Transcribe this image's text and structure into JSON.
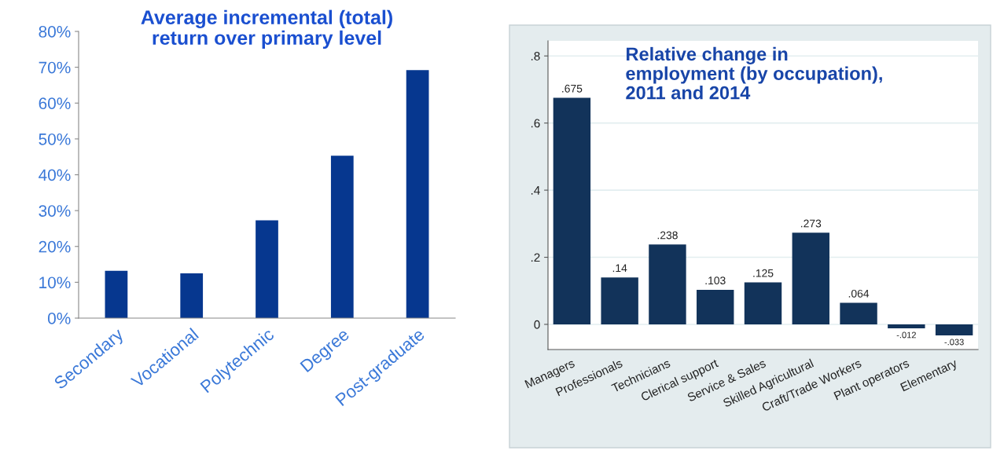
{
  "chart_data": [
    {
      "type": "bar",
      "title": "Average incremental (total)\nreturn over primary level",
      "categories": [
        "Secondary",
        "Vocational",
        "Polytechnic",
        "Degree",
        "Post-graduate"
      ],
      "values": [
        13.2,
        12.5,
        27.3,
        45.3,
        69.2
      ],
      "color": "#06378f",
      "ylim": [
        0,
        80
      ],
      "yticks": [
        {
          "value": 0,
          "label": "0%"
        },
        {
          "value": 10,
          "label": "10%"
        },
        {
          "value": 20,
          "label": "20%"
        },
        {
          "value": 30,
          "label": "30%"
        },
        {
          "value": 40,
          "label": "40%"
        },
        {
          "value": 50,
          "label": "50%"
        },
        {
          "value": 60,
          "label": "60%"
        },
        {
          "value": 70,
          "label": "70%"
        },
        {
          "value": 80,
          "label": "80%"
        }
      ],
      "grid": false
    },
    {
      "type": "bar",
      "title": "Relative change in\nemployment (by occupation),\n2011 and 2014",
      "categories": [
        "Managers",
        "Professionals",
        "Technicians",
        "Clerical support",
        "Service & Sales",
        "Skilled Agricultural",
        "Craft/Trade Workers",
        "Plant operators",
        "Elementary"
      ],
      "values": [
        0.675,
        0.14,
        0.238,
        0.103,
        0.125,
        0.273,
        0.064,
        -0.012,
        -0.033
      ],
      "value_labels": [
        ".675",
        ".14",
        ".238",
        ".103",
        ".125",
        ".273",
        ".064",
        "-.012",
        "-.033"
      ],
      "color": "#12335a",
      "ylim": [
        -0.075,
        0.845
      ],
      "yticks": [
        {
          "value": 0,
          "label": "0"
        },
        {
          "value": 0.2,
          "label": ".2"
        },
        {
          "value": 0.4,
          "label": ".4"
        },
        {
          "value": 0.6,
          "label": ".6"
        },
        {
          "value": 0.8,
          "label": ".8"
        }
      ],
      "grid": "y"
    }
  ]
}
